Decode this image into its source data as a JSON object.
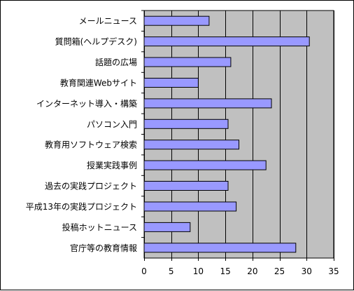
{
  "chart_data": {
    "type": "bar",
    "orientation": "horizontal",
    "categories": [
      "メールニュース",
      "質問箱(ヘルプデスク)",
      "話題の広場",
      "教育関連Webサイト",
      "インターネット導入・構築",
      "パソコン入門",
      "教育用ソフトウェア検索",
      "授業実践事例",
      "過去の実践プロジェクト",
      "平成13年の実践プロジェクト",
      "投稿ホットニュース",
      "官庁等の教育情報"
    ],
    "values": [
      12,
      30.5,
      16,
      10,
      23.5,
      15.5,
      17.5,
      22.5,
      15.5,
      17,
      8.5,
      28
    ],
    "xlim": [
      0,
      35
    ],
    "xticks": [
      "0",
      "5",
      "10",
      "15",
      "20",
      "25",
      "30",
      "35"
    ],
    "title": "",
    "xlabel": "",
    "ylabel": "",
    "grid": "vertical",
    "legend": "none",
    "colors": {
      "plot_background": "#c0c0c0",
      "bar_fill": "#9999ff",
      "bar_stroke": "#000000",
      "grid": "#000000"
    }
  }
}
